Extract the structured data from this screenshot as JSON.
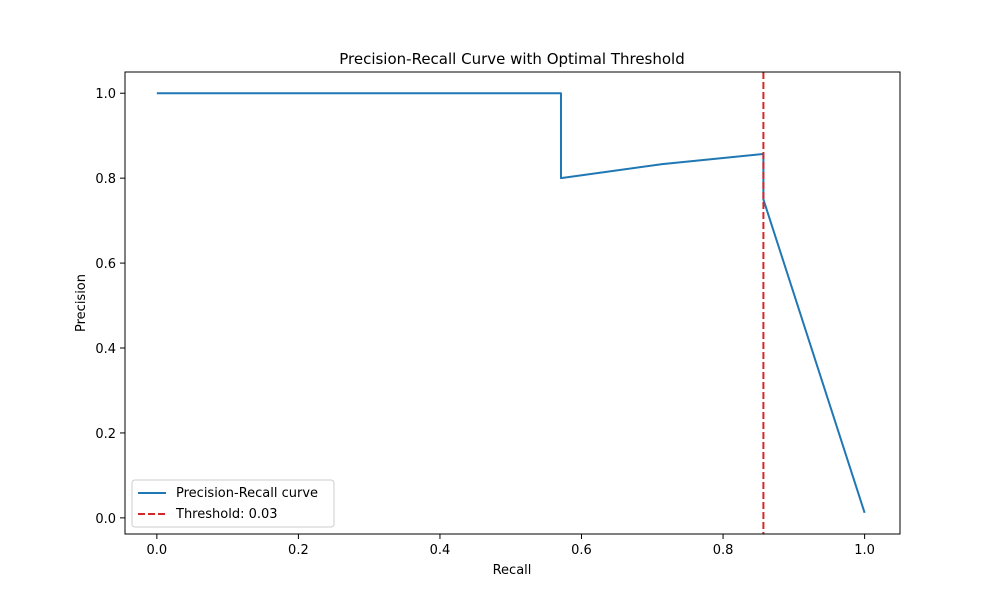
{
  "chart_data": {
    "type": "line",
    "title": "Precision-Recall Curve with Optimal Threshold",
    "xlabel": "Recall",
    "ylabel": "Precision",
    "xlim": [
      -0.045,
      1.05
    ],
    "ylim": [
      -0.038,
      1.05
    ],
    "xticks": [
      0.0,
      0.2,
      0.4,
      0.6,
      0.8,
      1.0
    ],
    "xtick_labels": [
      "0.0",
      "0.2",
      "0.4",
      "0.6",
      "0.8",
      "1.0"
    ],
    "yticks": [
      0.0,
      0.2,
      0.4,
      0.6,
      0.8,
      1.0
    ],
    "ytick_labels": [
      "0.0",
      "0.2",
      "0.4",
      "0.6",
      "0.8",
      "1.0"
    ],
    "grid": false,
    "legend_position": "lower-left",
    "series": [
      {
        "name": "Precision-Recall curve",
        "color": "#1f77b4",
        "style": "solid",
        "x": [
          0.0,
          0.571,
          0.571,
          0.714,
          0.857,
          0.857,
          1.0
        ],
        "y": [
          1.0,
          1.0,
          0.8,
          0.833,
          0.857,
          0.75,
          0.012
        ]
      }
    ],
    "vlines": [
      {
        "name": "Threshold: 0.03",
        "x": 0.857,
        "color": "#d62728",
        "style": "dashed"
      }
    ],
    "legend": [
      {
        "label": "Precision-Recall curve",
        "color": "#1f77b4",
        "style": "solid"
      },
      {
        "label": "Threshold: 0.03",
        "color": "#d62728",
        "style": "dashed"
      }
    ]
  }
}
